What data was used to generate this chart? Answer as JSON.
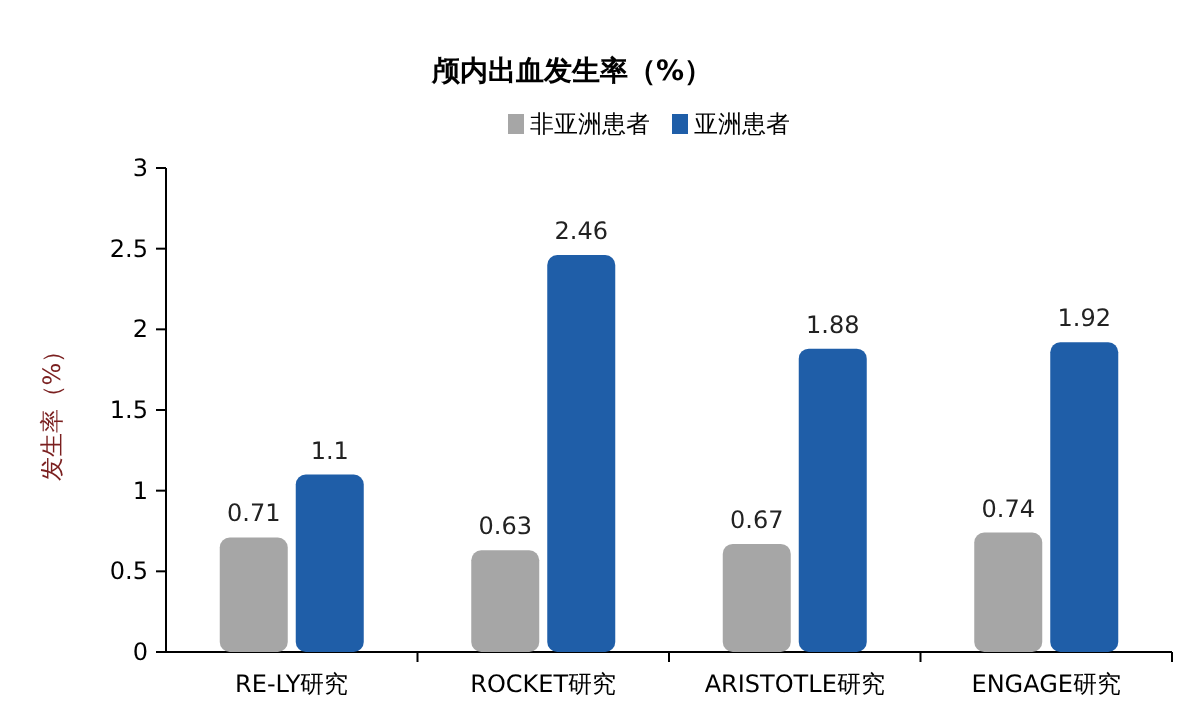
{
  "chart_data": {
    "type": "bar",
    "title": "颅内出血发生率（%）",
    "ylabel": "发生率（%）",
    "categories": [
      "RE-LY研究",
      "ROCKET研究",
      "ARISTOTLE研究",
      "ENGAGE研究"
    ],
    "series": [
      {
        "name": "非亚洲患者",
        "color": "#a6a6a6",
        "values": [
          0.71,
          0.63,
          0.67,
          0.74
        ]
      },
      {
        "name": "亚洲患者",
        "color": "#1f5ea8",
        "values": [
          1.1,
          2.46,
          1.88,
          1.92
        ]
      }
    ],
    "ylim": [
      0,
      3
    ],
    "yticks": [
      0,
      0.5,
      1,
      1.5,
      2,
      2.5,
      3
    ],
    "data_labels": true,
    "legend": "top",
    "grid": false
  }
}
